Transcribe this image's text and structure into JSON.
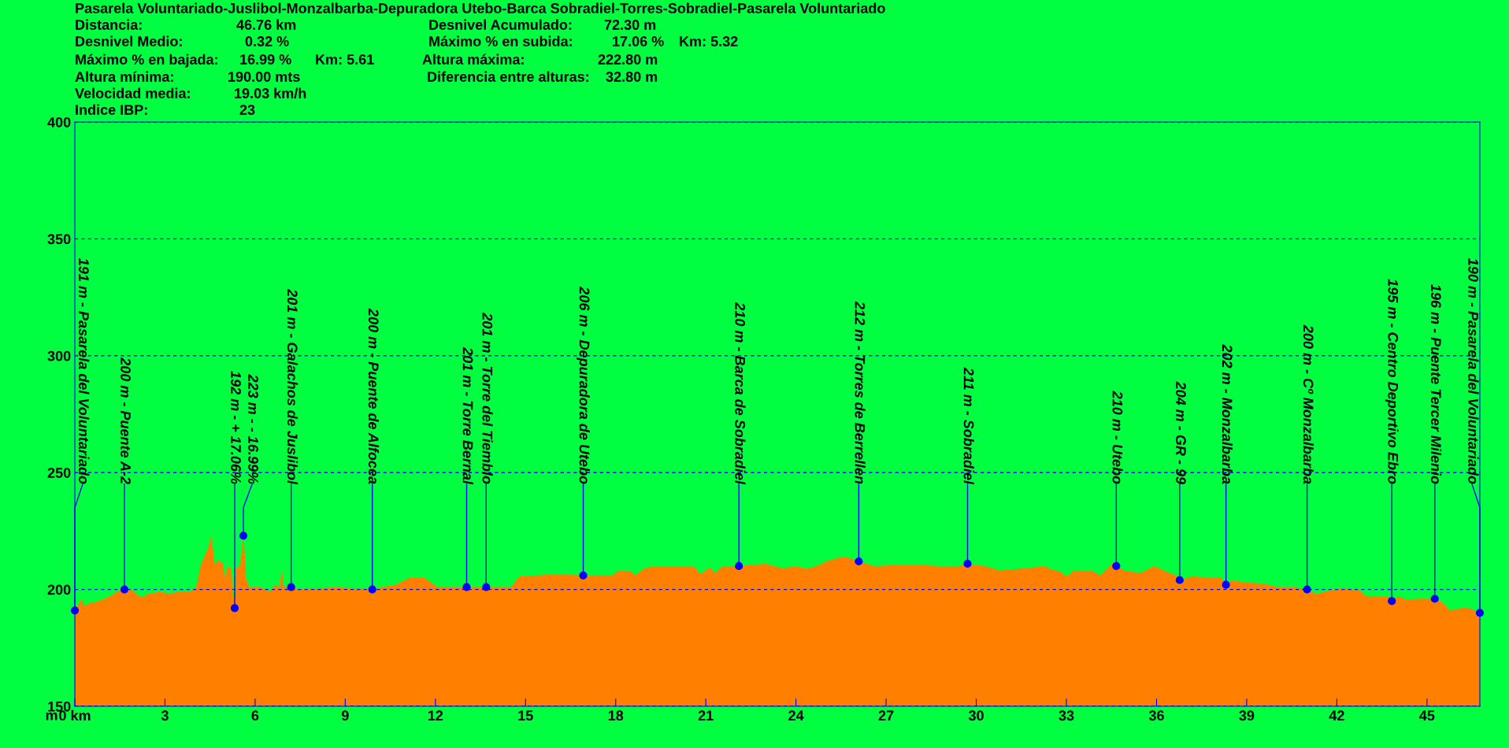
{
  "chart_data": {
    "type": "area",
    "title": "Pasarela Voluntariado-Juslibol-Monzalbarba-Depuradora Utebo-Barca Sobradiel-Torres-Sobradiel-Pasarela Voluntariado",
    "ylabel": "m",
    "xlim": [
      0,
      46.76
    ],
    "xticks": [
      {
        "value": 0,
        "label": "0 km"
      },
      3,
      6,
      9,
      12,
      15,
      18,
      21,
      24,
      27,
      30,
      33,
      36,
      39,
      42,
      45
    ],
    "ylim": [
      150,
      400
    ],
    "yticks": [
      150,
      200,
      250,
      300,
      350,
      400
    ],
    "grid": "y",
    "series": [
      {
        "color": "#ff8000",
        "x": [
          0,
          0.23,
          0.3,
          0.46,
          0.78,
          1.16,
          1.48,
          1.65,
          1.92,
          2.13,
          2.35,
          2.4,
          2.83,
          3.2,
          3.4,
          3.83,
          4.04,
          4.2,
          4.35,
          4.46,
          4.55,
          4.6,
          4.66,
          4.77,
          4.93,
          5.0,
          5.08,
          5.2,
          5.32,
          5.35,
          5.5,
          5.61,
          5.64,
          5.7,
          5.8,
          6.2,
          6.48,
          6.67,
          6.8,
          6.9,
          6.96,
          7.2,
          7.45,
          8.7,
          9.9,
          10.2,
          10.67,
          11.15,
          11.63,
          12.07,
          13.04,
          13.69,
          14.5,
          14.8,
          15.44,
          15.87,
          16.92,
          17.9,
          18.08,
          18.45,
          18.67,
          18.94,
          19.31,
          20.6,
          20.82,
          21.14,
          21.3,
          21.57,
          22.1,
          22.97,
          23.6,
          23.94,
          24.37,
          24.69,
          25.0,
          25.55,
          25.76,
          26.09,
          26.62,
          27.38,
          28.13,
          28.78,
          29.42,
          29.71,
          30.28,
          30.82,
          31.57,
          32.3,
          32.4,
          32.81,
          33.02,
          33.23,
          33.85,
          34.11,
          34.37,
          34.55,
          34.66,
          34.94,
          35.46,
          35.92,
          36.34,
          36.65,
          36.77,
          37.17,
          38.15,
          38.31,
          38.51,
          38.93,
          39.55,
          40.07,
          40.58,
          41.01,
          41.31,
          41.62,
          42.14,
          42.76,
          42.97,
          43.69,
          43.83,
          44.06,
          44.32,
          44.63,
          45.26,
          45.51,
          45.77,
          46.18,
          46.39,
          46.76
        ],
        "values": [
          191,
          196,
          193,
          194,
          195,
          197,
          199.5,
          200,
          199.5,
          197,
          197,
          198,
          199,
          198,
          199,
          199,
          201,
          211,
          215,
          218.5,
          223,
          217,
          210.5,
          212.5,
          211,
          204.5,
          210,
          209,
          192,
          208.5,
          210.5,
          222.5,
          218.5,
          204.5,
          201,
          201,
          199,
          202,
          201,
          208,
          201,
          201,
          200,
          201,
          200,
          201,
          202,
          205,
          205,
          201,
          201,
          201,
          201,
          205.5,
          206,
          206.5,
          206,
          206,
          208,
          208,
          206,
          209,
          210,
          210,
          206.5,
          209.5,
          207,
          210,
          210,
          211,
          209,
          210,
          209,
          210,
          212,
          214,
          213.5,
          212,
          210,
          210.5,
          210.5,
          210,
          210,
          211,
          210,
          208,
          209,
          210,
          209,
          207.5,
          205.5,
          208,
          208,
          206,
          209,
          211.5,
          210,
          208,
          207,
          210,
          207.5,
          206,
          204,
          205.5,
          205,
          202,
          204,
          203,
          202.5,
          201,
          201,
          200,
          198,
          199,
          200.5,
          199.5,
          197,
          197,
          195,
          197,
          195.5,
          196,
          196,
          194.5,
          191,
          192,
          192,
          190
        ]
      },
      {
        "type": "scatter",
        "color": "#0000ff",
        "marker": "circle",
        "x": [
          0,
          1.65,
          5.32,
          5.61,
          7.2,
          9.9,
          13.04,
          13.69,
          16.92,
          22.1,
          26.09,
          29.71,
          34.66,
          36.77,
          38.31,
          41.01,
          43.83,
          45.26,
          46.76
        ],
        "values": [
          191,
          200,
          192,
          223,
          201,
          200,
          201,
          201,
          206,
          210,
          212,
          211,
          210,
          204,
          202,
          200,
          195,
          196,
          190
        ]
      }
    ],
    "annotations": [
      {
        "text": "191 m - Pasarela del Voluntariado",
        "x": 0,
        "y": 191
      },
      {
        "text": "200 m - Puente A-2",
        "x": 1.65,
        "y": 200
      },
      {
        "text": "192 m - + 17.06%",
        "x": 5.32,
        "y": 192
      },
      {
        "text": "223 m - - 16.99%",
        "x": 5.61,
        "y": 223
      },
      {
        "text": "201 m - Galachos de Juslibol",
        "x": 7.2,
        "y": 201
      },
      {
        "text": "200 m - Puente de Alfocea",
        "x": 9.9,
        "y": 200
      },
      {
        "text": "201 m - Torre Bernal",
        "x": 13.04,
        "y": 201
      },
      {
        "text": "201 m - Torre del Tiemblo",
        "x": 13.69,
        "y": 201
      },
      {
        "text": "206 m - Depuradora de Utebo",
        "x": 16.92,
        "y": 206
      },
      {
        "text": "210 m - Barca de Sobradiel",
        "x": 22.1,
        "y": 210
      },
      {
        "text": "212 m - Torres de Berrellen",
        "x": 26.09,
        "y": 212
      },
      {
        "text": "211 m - Sobradiel",
        "x": 29.71,
        "y": 211
      },
      {
        "text": "210 m - Utebo",
        "x": 34.66,
        "y": 210
      },
      {
        "text": "204 m - GR - 99",
        "x": 36.77,
        "y": 204
      },
      {
        "text": "202 m - Monzalbarba",
        "x": 38.31,
        "y": 202
      },
      {
        "text": "200 m - Cº Monzalbarba",
        "x": 41.01,
        "y": 200
      },
      {
        "text": "195 m - Centro Deportivo Ebro",
        "x": 43.83,
        "y": 195
      },
      {
        "text": "196 m - Puente Tercer Milenio",
        "x": 45.26,
        "y": 196
      },
      {
        "text": "190 m - Pasarela del Voluntariado",
        "x": 46.76,
        "y": 190
      },
      "Distancia:",
      "46.76 km",
      "Desnivel Acumulado:",
      "72.30 m",
      "Desnivel Medio:",
      "0.32 %",
      "Máximo % en subida:",
      "17.06 %",
      "Km: 5.32",
      "Máximo % en bajada:",
      "16.99 %",
      "Km: 5.61",
      "Altura máxima:",
      "222.80 m",
      "Altura mínima:",
      "190.00 mts",
      "Diferencia entre alturas:",
      "32.80 m",
      "Velocidad media:",
      "19.03 km/h",
      "Indice IBP:",
      "23"
    ]
  }
}
